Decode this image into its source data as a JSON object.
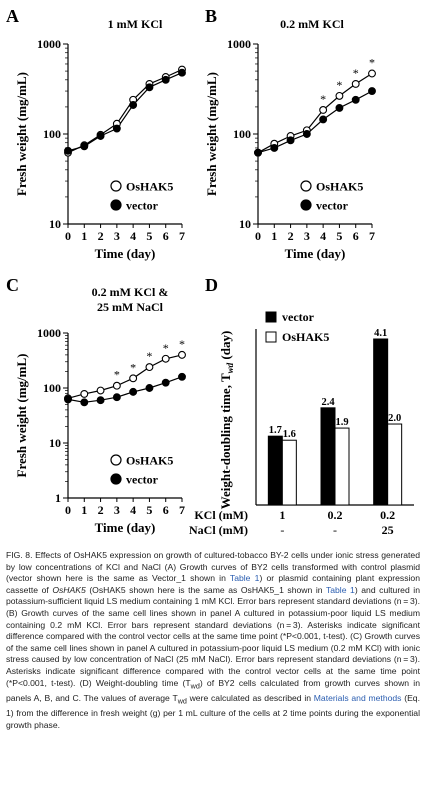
{
  "colors": {
    "axis": "#000000",
    "caption_text": "#222222",
    "caption_link": "#2a5db0"
  },
  "chart_data": [
    {
      "panel": "A",
      "type": "line",
      "title": "1 mM KCl",
      "xlabel": "Time (day)",
      "ylabel": "Fresh weight (mg/mL)",
      "yscale": "log",
      "ylim": [
        10,
        1000
      ],
      "xlim": [
        0,
        7
      ],
      "xticks": [
        "0",
        "1",
        "2",
        "3",
        "4",
        "5",
        "6",
        "7"
      ],
      "yticks": [
        "10",
        "100",
        "1000"
      ],
      "legend_position": "bottom-right",
      "x": [
        0,
        1,
        2,
        3,
        4,
        5,
        6,
        7
      ],
      "series": [
        {
          "name": "OsHAK5",
          "marker": "open-circle",
          "values": [
            62,
            75,
            98,
            130,
            240,
            360,
            430,
            520
          ]
        },
        {
          "name": "vector",
          "marker": "filled-circle",
          "values": [
            65,
            73,
            95,
            115,
            210,
            330,
            400,
            480
          ]
        }
      ],
      "significance_marks": []
    },
    {
      "panel": "B",
      "type": "line",
      "title": "0.2 mM KCl",
      "xlabel": "Time (day)",
      "ylabel": "Fresh weight (mg/mL)",
      "yscale": "log",
      "ylim": [
        10,
        1000
      ],
      "xlim": [
        0,
        7
      ],
      "xticks": [
        "0",
        "1",
        "2",
        "3",
        "4",
        "5",
        "6",
        "7"
      ],
      "yticks": [
        "10",
        "100",
        "1000"
      ],
      "legend_position": "bottom-right",
      "x": [
        0,
        1,
        2,
        3,
        4,
        5,
        6,
        7
      ],
      "series": [
        {
          "name": "OsHAK5",
          "marker": "open-circle",
          "values": [
            62,
            78,
            95,
            110,
            185,
            265,
            360,
            470
          ]
        },
        {
          "name": "vector",
          "marker": "filled-circle",
          "values": [
            62,
            70,
            85,
            100,
            145,
            195,
            240,
            300
          ]
        }
      ],
      "significance_marks": [
        {
          "x": 4,
          "label": "*"
        },
        {
          "x": 5,
          "label": "*"
        },
        {
          "x": 6,
          "label": "*"
        },
        {
          "x": 7,
          "label": "*"
        }
      ]
    },
    {
      "panel": "C",
      "type": "line",
      "title": "0.2 mM KCl & 25 mM NaCl",
      "title_lines": [
        "0.2 mM KCl &",
        "25 mM NaCl"
      ],
      "xlabel": "Time (day)",
      "ylabel": "Fresh weight (mg/mL)",
      "yscale": "log",
      "ylim": [
        1,
        1000
      ],
      "xlim": [
        0,
        7
      ],
      "xticks": [
        "0",
        "1",
        "2",
        "3",
        "4",
        "5",
        "6",
        "7"
      ],
      "yticks": [
        "1",
        "10",
        "100",
        "1000"
      ],
      "legend_position": "bottom-right",
      "x": [
        0,
        1,
        2,
        3,
        4,
        5,
        6,
        7
      ],
      "series": [
        {
          "name": "OsHAK5",
          "marker": "open-circle",
          "values": [
            65,
            78,
            90,
            110,
            150,
            240,
            340,
            400
          ]
        },
        {
          "name": "vector",
          "marker": "filled-circle",
          "values": [
            62,
            55,
            60,
            68,
            85,
            100,
            125,
            160
          ]
        }
      ],
      "significance_marks": [
        {
          "x": 3,
          "label": "*"
        },
        {
          "x": 4,
          "label": "*"
        },
        {
          "x": 5,
          "label": "*"
        },
        {
          "x": 6,
          "label": "*"
        },
        {
          "x": 7,
          "label": "*"
        }
      ]
    },
    {
      "panel": "D",
      "type": "bar",
      "ylabel": "Weight-doubling time, T",
      "ylabel_sub": "wd",
      "ylabel_unit": " (day)",
      "ylim": [
        0,
        4.1
      ],
      "legend_position": "top-left",
      "row_labels": [
        "KCl (mM)",
        "NaCl (mM)"
      ],
      "categories": [
        {
          "kcl": "1",
          "nacl": "-"
        },
        {
          "kcl": "0.2",
          "nacl": "-"
        },
        {
          "kcl": "0.2",
          "nacl": "25"
        }
      ],
      "series": [
        {
          "name": "vector",
          "fill": "#000000",
          "values": [
            1.7,
            2.4,
            4.1
          ],
          "labels": [
            "1.7",
            "2.4",
            "4.1"
          ]
        },
        {
          "name": "OsHAK5",
          "fill": "#ffffff",
          "values": [
            1.6,
            1.9,
            2.0
          ],
          "labels": [
            "1.6",
            "1.9",
            "2.0"
          ]
        }
      ]
    }
  ],
  "caption": {
    "parts": [
      {
        "t": "FIG. 8. Effects of OsHAK5 expression on growth of cultured-tobacco BY-2 cells under ionic stress generated by low concentrations of KCl and NaCl (A) Growth curves of BY2 cells transformed with control plasmid (vector shown here is the same as Vector_1 shown in "
      },
      {
        "t": "Table 1",
        "link": true
      },
      {
        "t": ") or plasmid containing plant expression cassette of "
      },
      {
        "t": "OsHAK5",
        "italic": true
      },
      {
        "t": " (OsHAK5 shown here is the same as OsHAK5_1 shown in "
      },
      {
        "t": "Table 1",
        "link": true
      },
      {
        "t": ") and cultured in potassium-sufficient liquid LS medium containing 1 mM KCl. Error bars represent standard deviations (n = 3). (B) Growth curves of the same cell lines shown in panel A cultured in potassium-poor liquid LS medium containing 0.2 mM KCl. Error bars represent standard deviations (n = 3). Asterisks indicate significant difference compared with the control vector cells at the same time point (*P<0.001, t-test). (C) Growth curves of the same cell lines shown in panel A cultured in potassium-poor liquid LS medium (0.2 mM KCl) with ionic stress caused by low concentration of NaCl (25 mM NaCl). Error bars represent standard deviations (n = 3). Asterisks indicate significant difference compared with the control vector cells at the same time point (*P<0.001, t-test). (D) Weight-doubling time (T"
      },
      {
        "t": "wd",
        "sub": true
      },
      {
        "t": ") of BY2 cells calculated from growth curves shown in panels A, B, and C. The values of average T"
      },
      {
        "t": "wd",
        "sub": true
      },
      {
        "t": " were calculated as described in "
      },
      {
        "t": "Materials and methods",
        "link": true
      },
      {
        "t": " (Eq. 1) from the difference in fresh weight (g) per 1 mL culture of the cells at 2 time points during the exponential growth phase."
      }
    ]
  }
}
